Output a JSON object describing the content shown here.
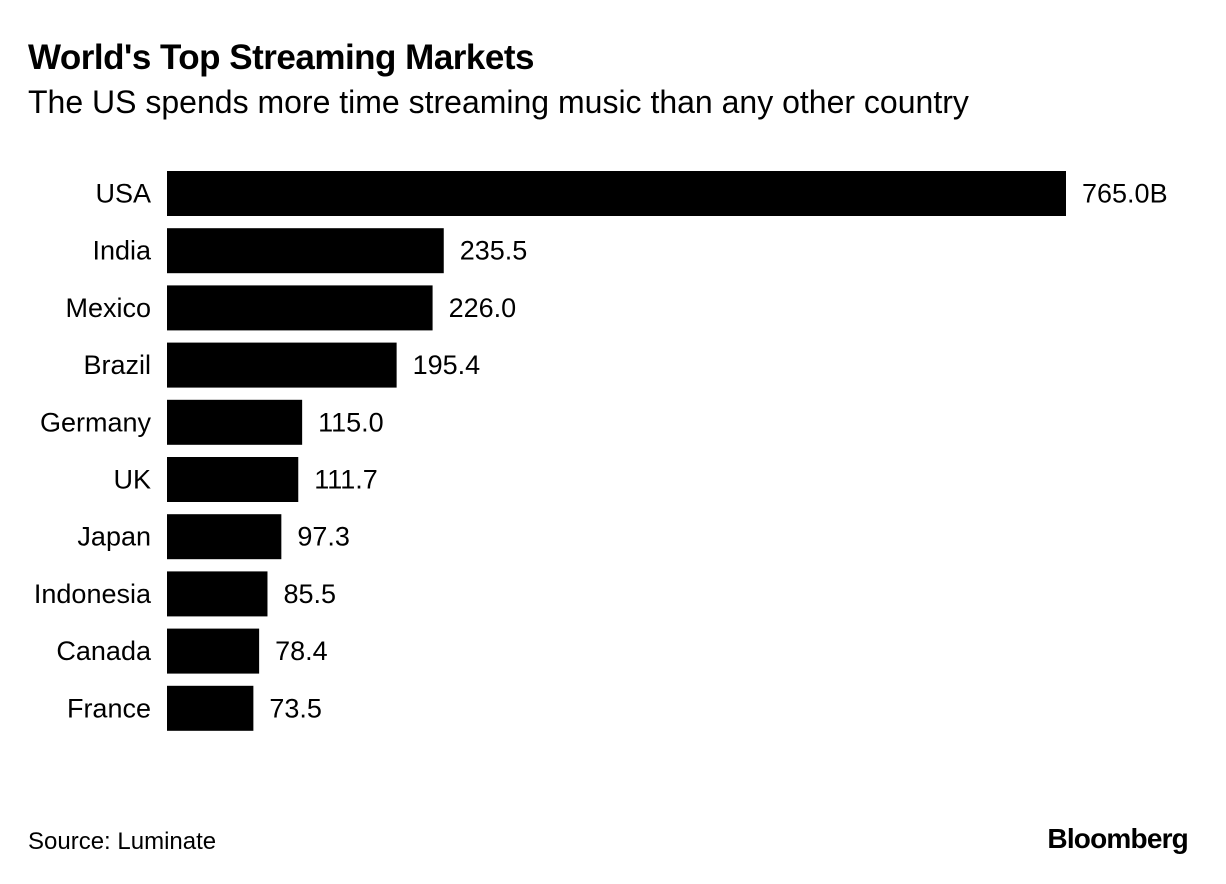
{
  "header": {
    "title": "World's Top Streaming Markets",
    "subtitle": "The US spends more time streaming music than any other country"
  },
  "footer": {
    "source": "Source: Luminate",
    "brand": "Bloomberg"
  },
  "colors": {
    "bar": "#000000",
    "text": "#000000",
    "background": "#ffffff"
  },
  "chart_data": {
    "type": "bar",
    "orientation": "horizontal",
    "title": "World's Top Streaming Markets",
    "subtitle": "The US spends more time streaming music than any other country",
    "categories": [
      "USA",
      "India",
      "Mexico",
      "Brazil",
      "Germany",
      "UK",
      "Japan",
      "Indonesia",
      "Canada",
      "France"
    ],
    "values": [
      765.0,
      235.5,
      226.0,
      195.4,
      115.0,
      111.7,
      97.3,
      85.5,
      78.4,
      73.5
    ],
    "value_labels": [
      "765.0B",
      "235.5",
      "226.0",
      "195.4",
      "115.0",
      "111.7",
      "97.3",
      "85.5",
      "78.4",
      "73.5"
    ],
    "xlim": [
      0,
      765.0
    ],
    "grid": false,
    "legend": "none"
  }
}
